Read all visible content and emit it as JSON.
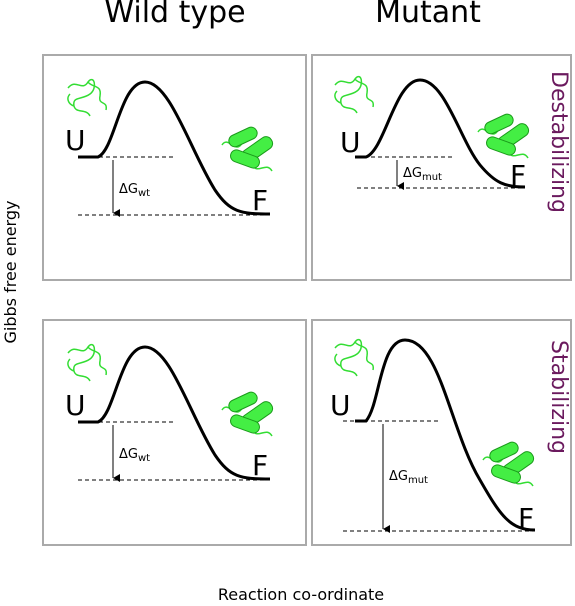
{
  "columns": [
    "Wild type",
    "Mutant"
  ],
  "rows": [
    "Destabilizing",
    "Stabilizing"
  ],
  "y_axis_label": "Gibbs free energy",
  "x_axis_label": "Reaction co-ordinate",
  "panels": [
    {
      "unfolded": "U",
      "folded": "F",
      "delta": "ΔG",
      "subscript": "wt"
    },
    {
      "unfolded": "U",
      "folded": "F",
      "delta": "ΔG",
      "subscript": "mut"
    },
    {
      "unfolded": "U",
      "folded": "F",
      "delta": "ΔG",
      "subscript": "wt"
    },
    {
      "unfolded": "U",
      "folded": "F",
      "delta": "ΔG",
      "subscript": "mut"
    }
  ]
}
